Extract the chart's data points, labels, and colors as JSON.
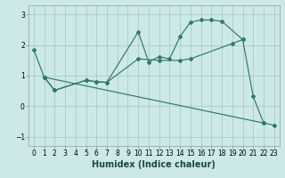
{
  "xlabel": "Humidex (Indice chaleur)",
  "background_color": "#cce8e8",
  "grid_color": "#aacccc",
  "line_color": "#2d7a6e",
  "xlim": [
    -0.5,
    23.5
  ],
  "ylim": [
    -1.3,
    3.3
  ],
  "yticks": [
    -1,
    0,
    1,
    2,
    3
  ],
  "xticks": [
    0,
    1,
    2,
    3,
    4,
    5,
    6,
    7,
    8,
    9,
    10,
    11,
    12,
    13,
    14,
    15,
    16,
    17,
    18,
    19,
    20,
    21,
    22,
    23
  ],
  "line1_x": [
    0,
    1,
    2,
    5,
    6,
    7,
    10,
    11,
    12,
    13,
    14,
    15,
    16,
    17,
    18,
    20,
    21,
    22,
    23
  ],
  "line1_y": [
    1.85,
    0.95,
    0.52,
    0.85,
    0.8,
    0.78,
    2.43,
    1.45,
    1.62,
    1.55,
    2.28,
    2.75,
    2.82,
    2.82,
    2.78,
    2.18,
    0.32,
    -0.55,
    -0.62
  ],
  "line2_x": [
    1,
    2,
    5,
    6,
    7,
    10,
    12,
    14,
    15,
    19,
    20
  ],
  "line2_y": [
    0.95,
    0.52,
    0.85,
    0.8,
    0.78,
    1.55,
    1.5,
    1.5,
    1.55,
    2.05,
    2.18
  ],
  "line3_x": [
    1,
    22
  ],
  "line3_y": [
    0.95,
    -0.55
  ],
  "font_size_tick": 5.5,
  "font_size_label": 7.0,
  "fig_width": 3.2,
  "fig_height": 2.0,
  "dpi": 100
}
